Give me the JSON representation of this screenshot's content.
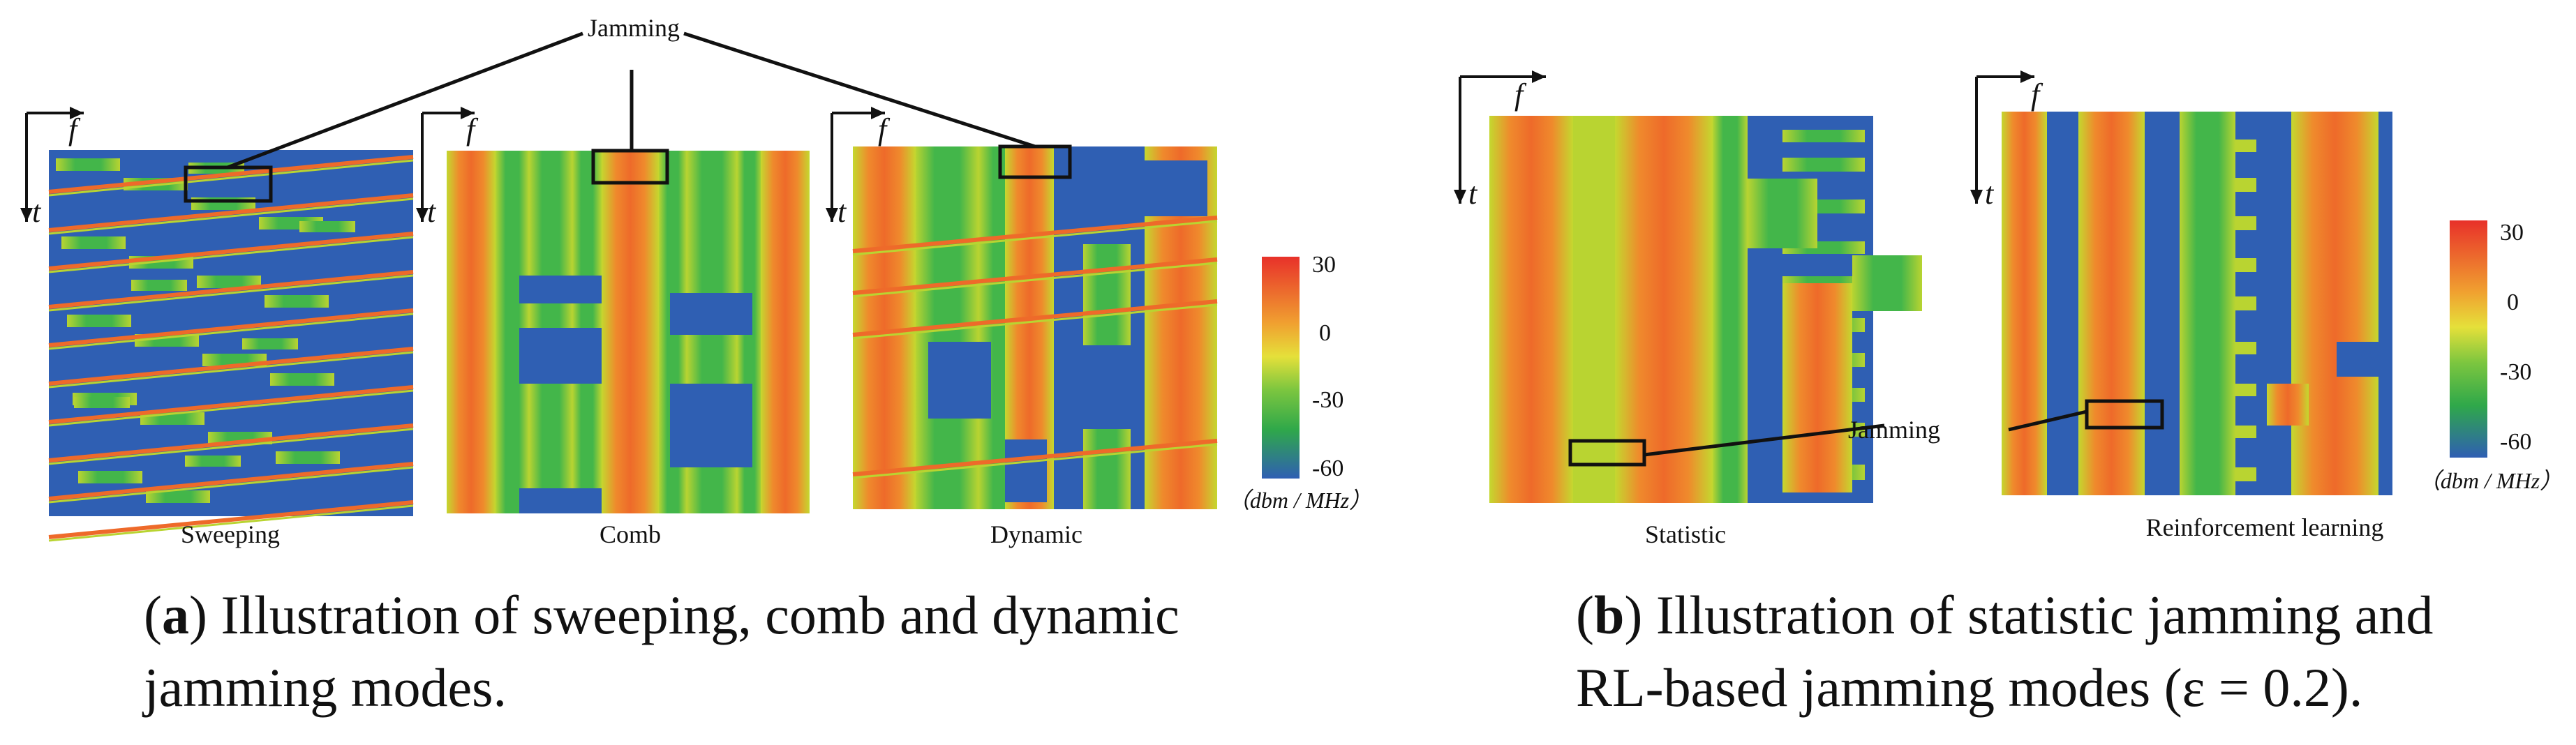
{
  "colors": {
    "blue": "#2f5fb3",
    "green": "#43b64a",
    "yellowgreen": "#b9d431",
    "orange": "#ee6a2a",
    "red": "#e8312a",
    "frame": "#111111"
  },
  "annotation_labels": {
    "jamming_top": "Jamming",
    "jamming_right": "Jamming"
  },
  "axis_labels": {
    "f": "f",
    "t": "t"
  },
  "panels": [
    {
      "id": "sweeping",
      "label": "Sweeping"
    },
    {
      "id": "comb",
      "label": "Comb"
    },
    {
      "id": "dynamic",
      "label": "Dynamic"
    },
    {
      "id": "statistic",
      "label": "Statistic"
    },
    {
      "id": "rl",
      "label": "Reinforcement learning"
    }
  ],
  "colorbars": [
    {
      "ticks": [
        "30",
        "0",
        "-30",
        "-60"
      ],
      "unit": "（dbm / MHz）"
    },
    {
      "ticks": [
        "30",
        "0",
        "-30",
        "-60"
      ],
      "unit": "（dbm / MHz）"
    }
  ],
  "captions": {
    "a": {
      "tag": "a",
      "line1": ") Illustration of sweeping, comb and dynamic",
      "line2": "jamming modes."
    },
    "b": {
      "tag": "b",
      "line1": ") Illustration of statistic jamming and",
      "line2": "RL-based jamming modes (ε = 0.2)."
    }
  }
}
